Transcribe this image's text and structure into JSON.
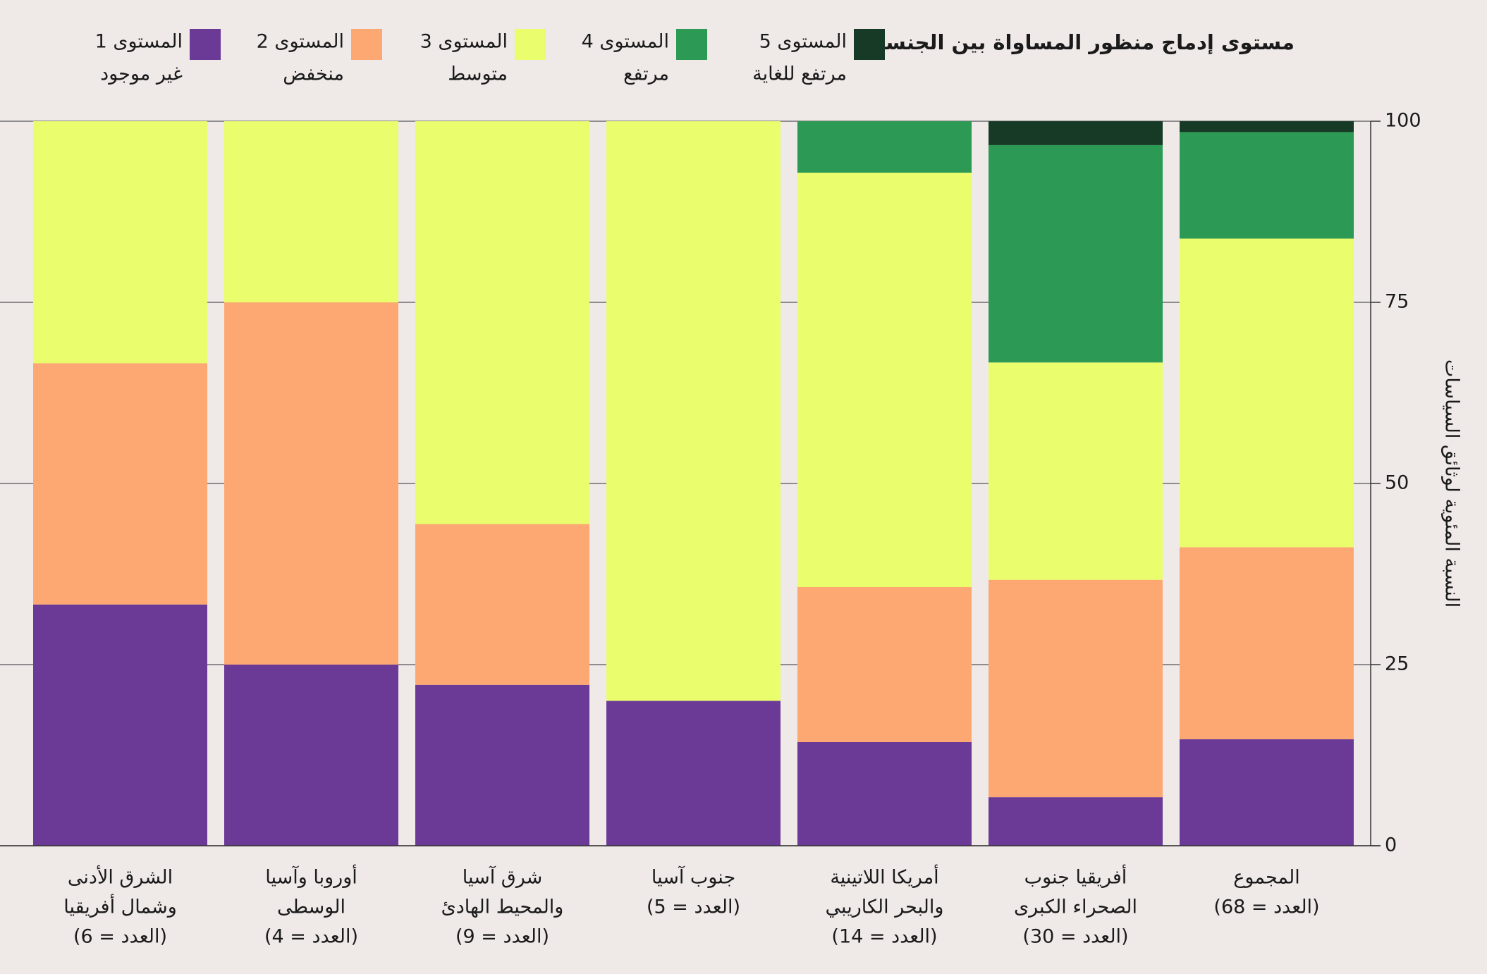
{
  "chart_data": {
    "type": "stacked_bar",
    "legend_title": "مستوى إدماج منظور المساواة بين الجنسين",
    "y_label": "النسبة المئوية لوثائق السياسات",
    "categories": [
      [
        "الشرق الأدنى",
        "وشمال أفريقيا",
        "(العدد = 6)"
      ],
      [
        "أوروبا وآسيا",
        "الوسطى",
        "(العدد = 4)"
      ],
      [
        "شرق آسيا",
        "والمحيط الهادئ",
        "(العدد = 9)"
      ],
      [
        "جنوب آسيا",
        "(العدد = 5)"
      ],
      [
        "أمريكا اللاتينية",
        "والبحر الكاريبي",
        "(العدد = 14)"
      ],
      [
        "أفريقيا جنوب",
        "الصحراء الكبرى",
        "(العدد = 30)"
      ],
      [
        "المجموع",
        "(العدد = 68)"
      ]
    ],
    "series": [
      {
        "name": "المستوى 1",
        "description": "غير موجود",
        "color": "#6b3996",
        "values": [
          33.3,
          25,
          22.2,
          20,
          14.3,
          6.7,
          14.7
        ]
      },
      {
        "name": "المستوى 2",
        "description": "منخفض",
        "color": "#fda873",
        "values": [
          33.3,
          50,
          22.2,
          0,
          21.4,
          30,
          26.5
        ]
      },
      {
        "name": "المستوى 3",
        "description": "متوسط",
        "color": "#e9fd6d",
        "values": [
          33.4,
          25,
          55.6,
          80,
          57.2,
          30,
          42.6
        ]
      },
      {
        "name": "المستوى 4",
        "description": "مرتفع",
        "color": "#2c9a55",
        "values": [
          0,
          0,
          0,
          0,
          7.1,
          30,
          14.7
        ]
      },
      {
        "name": "المستوى 5",
        "description": "مرتفع للغاية",
        "color": "#173a26",
        "values": [
          0,
          0,
          0,
          0,
          0,
          3.3,
          1.5
        ]
      }
    ],
    "ylim": [
      0,
      100
    ],
    "yticks": [
      0,
      25,
      50,
      75,
      100
    ],
    "grid": true
  }
}
